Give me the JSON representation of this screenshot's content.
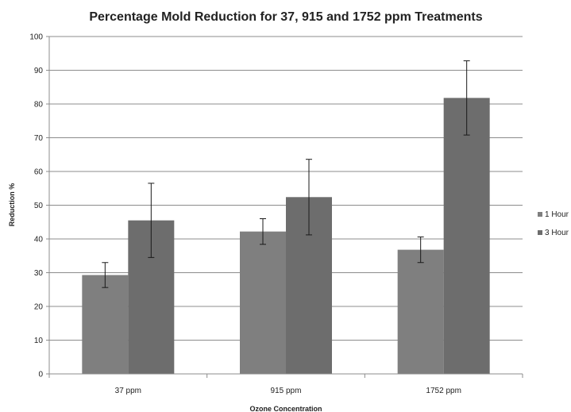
{
  "chart_data": {
    "type": "bar",
    "title": "Percentage Mold Reduction for 37, 915 and 1752 ppm Treatments",
    "xlabel": "Ozone Concentration",
    "ylabel": "Reduction %",
    "categories": [
      "37 ppm",
      "915 ppm",
      "1752 ppm"
    ],
    "ylim": [
      0,
      100
    ],
    "yticks": [
      0,
      10,
      20,
      30,
      40,
      50,
      60,
      70,
      80,
      90,
      100
    ],
    "grid": true,
    "legend_position": "right",
    "series": [
      {
        "name": "1 Hour",
        "color": "#7f7f7f",
        "values": [
          29.3,
          42.2,
          36.8
        ],
        "error": [
          3.7,
          3.8,
          3.8
        ]
      },
      {
        "name": "3 Hour",
        "color": "#6d6d6d",
        "values": [
          45.5,
          52.4,
          81.8
        ],
        "error": [
          11.0,
          11.2,
          11.0
        ]
      }
    ]
  }
}
